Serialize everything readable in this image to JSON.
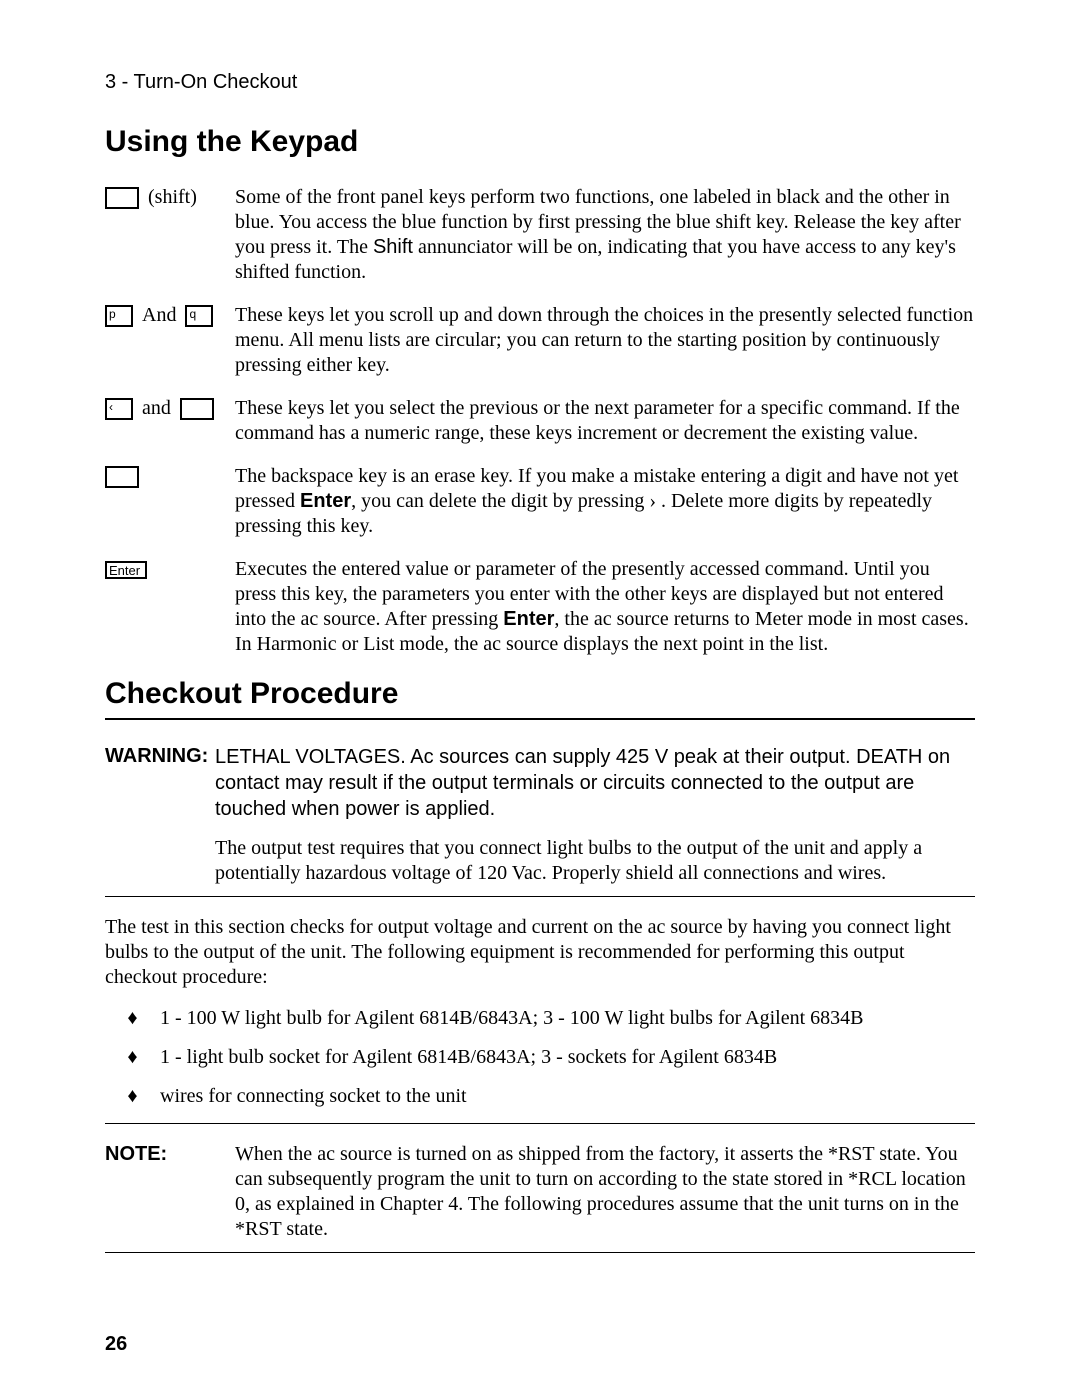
{
  "breadcrumb": "3 - Turn-On Checkout",
  "section1_title": "Using the Keypad",
  "keypad": [
    {
      "label_suffix": "(shift)",
      "desc": "Some of the front panel keys perform two functions, one labeled in black and the other in blue. You access the blue function by first pressing the blue shift key. Release the key after you press it. The Shift annunciator will be on, indicating that you have access to any key's shifted function.",
      "shift_word": "Shift"
    },
    {
      "and_word": "And",
      "box1_text": "p",
      "box2_text": "q",
      "desc": "These keys let you scroll up and down through the choices in the presently selected function menu. All menu lists are circular; you can return to the starting position by continuously pressing either key."
    },
    {
      "and_word": "and",
      "box1_text": "‹",
      "desc": "These keys let you select the previous or the next parameter for a specific command. If the command has a numeric range, these keys increment or decrement the existing value."
    },
    {
      "desc_pre": "The backspace key is an erase key. If you make a mistake entering a digit and have not yet pressed ",
      "enter_word": "Enter",
      "desc_mid": ", you can delete the digit by pressing  ›  . Delete more digits by repeatedly pressing this key."
    },
    {
      "box_text": "Enter",
      "desc_pre": "Executes the entered value or parameter of the presently accessed command. Until you press this key, the parameters you enter with the other keys are displayed but not entered into the ac source. After pressing ",
      "enter_word": "Enter",
      "desc_post": ", the ac source returns to Meter mode in most cases. In Harmonic or List mode, the ac source displays the next point in the list."
    }
  ],
  "section2_title": "Checkout Procedure",
  "warning_label": "WARNING:",
  "warning_text1": "LETHAL VOLTAGES. Ac sources can supply 425 V peak at their output. DEATH on contact may result if the output terminals or circuits connected to the output are touched when power is applied.",
  "warning_text2": "The output test requires that you connect light bulbs to the output of the unit and apply a potentially hazardous voltage of 120 Vac. Properly shield all connections and wires.",
  "intro_para": "The test in this section checks for output voltage and current on the ac source by having you connect light bulbs to the output of the unit. The following equipment is recommended for performing this output checkout procedure:",
  "equipment": [
    "1 - 100 W light bulb for Agilent 6814B/6843A; 3 - 100 W light bulbs for Agilent 6834B",
    "1 - light bulb socket for Agilent 6814B/6843A; 3 - sockets for Agilent 6834B",
    "wires for connecting socket to the unit"
  ],
  "note_label": "NOTE:",
  "note_text": "When the ac source is turned on as shipped from the factory, it asserts the *RST state. You can subsequently program the unit to turn on according to the state stored in *RCL location 0, as explained in Chapter 4. The following procedures assume that the unit turns on in the *RST state.",
  "page_number": "26",
  "bullet_glyph": "♦"
}
